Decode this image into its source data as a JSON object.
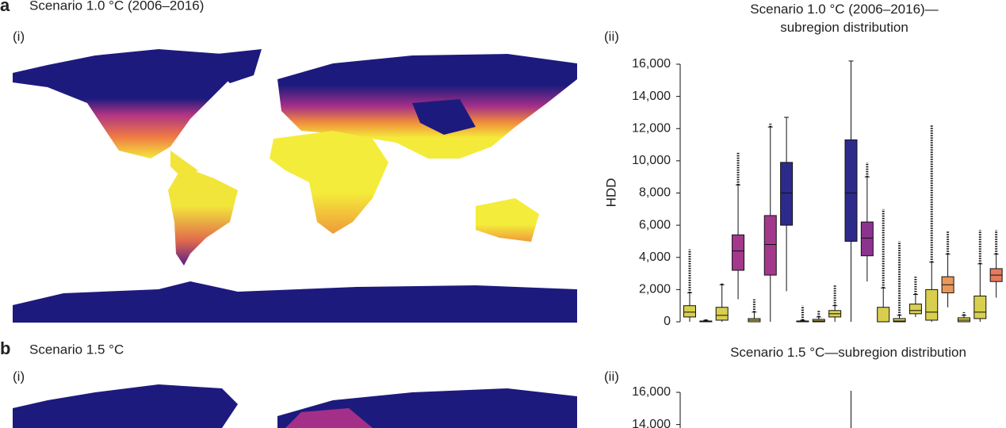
{
  "panels": [
    {
      "letter": "a",
      "title": "Scenario 1.0 °C (2006–2016)",
      "map_label": "(i)",
      "chart_label": "(ii)"
    },
    {
      "letter": "b",
      "title": "Scenario 1.5 °C",
      "map_label": "(i)",
      "chart_label": "(ii)"
    }
  ],
  "chart_data": [
    {
      "type": "box",
      "title": "Scenario 1.0 °C (2006–2016)—subregion distribution",
      "y_label": "HDD",
      "categories": [
        null,
        null,
        null,
        null,
        null,
        null,
        null,
        null,
        null,
        null,
        null,
        null,
        null,
        null,
        null,
        null,
        null,
        null,
        null,
        null
      ],
      "ylim": [
        0,
        16000
      ],
      "yticks": [
        {
          "value": 0,
          "label": "0"
        },
        {
          "value": 2000,
          "label": "2,000"
        },
        {
          "value": 4000,
          "label": "4,000"
        },
        {
          "value": 6000,
          "label": "6,000"
        },
        {
          "value": 8000,
          "label": "8,000"
        },
        {
          "value": 10000,
          "label": "10,000"
        },
        {
          "value": 12000,
          "label": "12,000"
        },
        {
          "value": 14000,
          "label": "14,000"
        },
        {
          "value": 16000,
          "label": "16,000"
        }
      ],
      "boxes": [
        {
          "min": 0,
          "q1": 300,
          "median": 600,
          "q3": 1000,
          "max": 1800,
          "outlier_max": 4500,
          "color": "#d9cf4f"
        },
        {
          "min": 0,
          "q1": 0,
          "median": 0,
          "q3": 50,
          "max": 100,
          "outlier_max": 150,
          "color": "#b8c24a"
        },
        {
          "min": 0,
          "q1": 100,
          "median": 400,
          "q3": 900,
          "max": 2300,
          "outlier_max": 2400,
          "color": "#d9cf4f"
        },
        {
          "min": 1400,
          "q1": 3200,
          "median": 4400,
          "q3": 5400,
          "max": 8500,
          "outlier_max": 10500,
          "color": "#a3388c"
        },
        {
          "min": 0,
          "q1": 0,
          "median": 100,
          "q3": 200,
          "max": 600,
          "outlier_max": 1400,
          "color": "#d9cf4f"
        },
        {
          "min": 0,
          "q1": 2900,
          "median": 4800,
          "q3": 6600,
          "max": 12100,
          "outlier_max": 12300,
          "color": "#a3388c"
        },
        {
          "min": 1900,
          "q1": 6000,
          "median": 8000,
          "q3": 9900,
          "max": 12700,
          "outlier_max": 12700,
          "color": "#2c2b8c"
        },
        {
          "min": 0,
          "q1": 0,
          "median": 0,
          "q3": 50,
          "max": 100,
          "outlier_max": 1000,
          "color": "#b8c24a"
        },
        {
          "min": 0,
          "q1": 0,
          "median": 50,
          "q3": 150,
          "max": 300,
          "outlier_max": 700,
          "color": "#d9cf4f"
        },
        {
          "min": 0,
          "q1": 300,
          "median": 500,
          "q3": 700,
          "max": 1000,
          "outlier_max": 2300,
          "color": "#d9cf4f"
        },
        {
          "min": 0,
          "q1": 5000,
          "median": 8000,
          "q3": 11300,
          "max": 16200,
          "outlier_max": 16200,
          "color": "#2c2b8c"
        },
        {
          "min": 2500,
          "q1": 4100,
          "median": 5200,
          "q3": 6200,
          "max": 9000,
          "outlier_max": 9900,
          "color": "#8c3390"
        },
        {
          "min": 0,
          "q1": 0,
          "median": 0,
          "q3": 900,
          "max": 2100,
          "outlier_max": 7000,
          "color": "#d9cf4f"
        },
        {
          "min": 0,
          "q1": 0,
          "median": 50,
          "q3": 200,
          "max": 400,
          "outlier_max": 5000,
          "color": "#d9cf4f"
        },
        {
          "min": 300,
          "q1": 500,
          "median": 700,
          "q3": 1100,
          "max": 1700,
          "outlier_max": 2800,
          "color": "#d9cf4f"
        },
        {
          "min": 0,
          "q1": 100,
          "median": 600,
          "q3": 2000,
          "max": 3700,
          "outlier_max": 12200,
          "color": "#d9cf4f"
        },
        {
          "min": 900,
          "q1": 1800,
          "median": 2300,
          "q3": 2800,
          "max": 4200,
          "outlier_max": 5600,
          "color": "#e8985a"
        },
        {
          "min": 0,
          "q1": 0,
          "median": 100,
          "q3": 250,
          "max": 400,
          "outlier_max": 600,
          "color": "#d9cf4f"
        },
        {
          "min": 0,
          "q1": 200,
          "median": 600,
          "q3": 1600,
          "max": 3600,
          "outlier_max": 5700,
          "color": "#d9cf4f"
        },
        {
          "min": 1500,
          "q1": 2500,
          "median": 2900,
          "q3": 3300,
          "max": 4200,
          "outlier_max": 5700,
          "color": "#e57a5e"
        }
      ]
    },
    {
      "type": "box",
      "title": "Scenario 1.5 °C—subregion distribution",
      "categories": [
        null,
        null,
        null,
        null,
        null,
        null,
        null,
        null,
        null,
        null,
        null,
        null,
        null,
        null,
        null,
        null,
        null,
        null,
        null,
        null
      ],
      "ylim": [
        0,
        16000
      ],
      "yticks": [
        {
          "value": 14000,
          "label": "14,000"
        },
        {
          "value": 16000,
          "label": "16,000"
        }
      ],
      "boxes": [
        null,
        null,
        null,
        null,
        null,
        null,
        null,
        null,
        null,
        null,
        {
          "max": 16100
        },
        null,
        null,
        null,
        null,
        null,
        null,
        null,
        null,
        null
      ]
    }
  ]
}
